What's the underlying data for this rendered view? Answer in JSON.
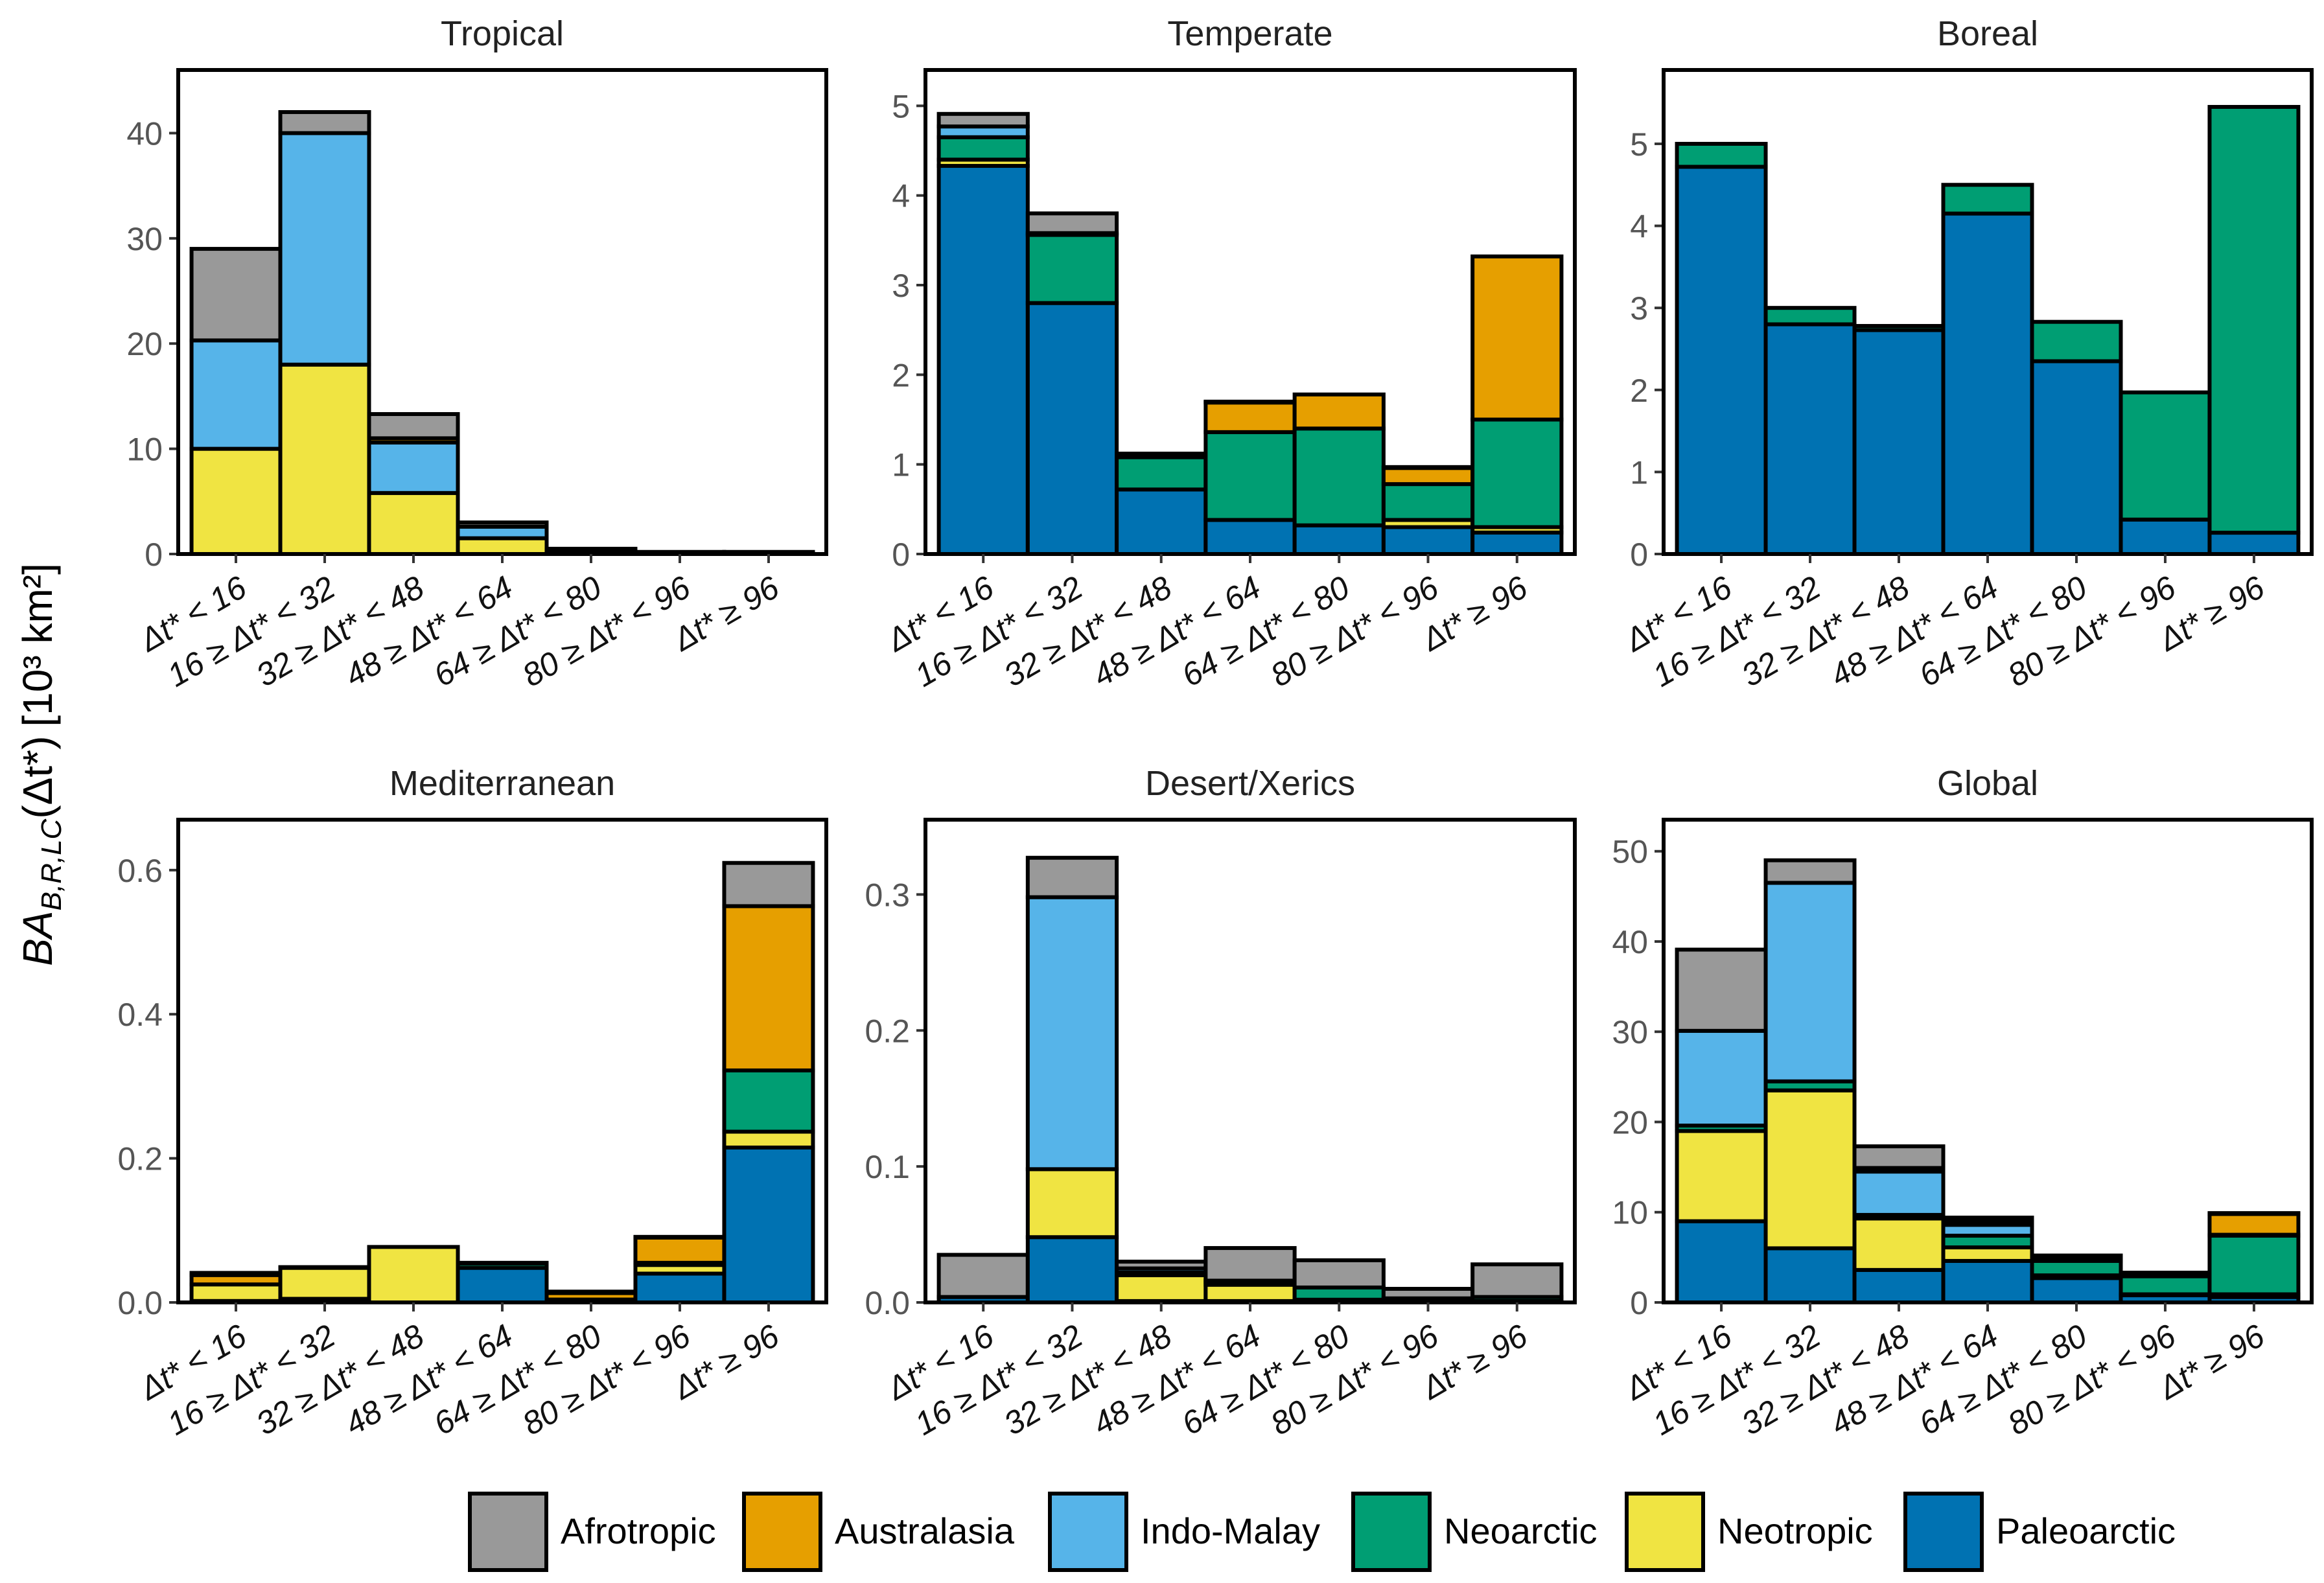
{
  "y_axis_label": {
    "symbol": "BA",
    "subscript": "B,R,LC",
    "argument": "(Δt*)",
    "units": "[10³ km²]"
  },
  "categories": [
    "Δt* < 16",
    "16 ≥ Δt* < 32",
    "32 ≥ Δt* < 48",
    "48 ≥ Δt* < 64",
    "64 ≥ Δt* < 80",
    "80 ≥ Δt* < 96",
    "Δt* ≥ 96"
  ],
  "legend": [
    {
      "name": "Afrotropic",
      "color": "#999999"
    },
    {
      "name": "Australasia",
      "color": "#E69F00"
    },
    {
      "name": "Indo-Malay",
      "color": "#56B4E9"
    },
    {
      "name": "Neoarctic",
      "color": "#009E73"
    },
    {
      "name": "Neotropic",
      "color": "#F0E442"
    },
    {
      "name": "Paleoarctic",
      "color": "#0072B2"
    }
  ],
  "chart_data": [
    {
      "type": "bar",
      "stacked": true,
      "title": "Tropical",
      "ylim": [
        0,
        46
      ],
      "yticks": [
        0,
        10,
        20,
        30,
        40
      ],
      "ytick_labels": [
        "0",
        "10",
        "20",
        "30",
        "40"
      ],
      "series": [
        {
          "name": "Paleoarctic",
          "values": [
            0,
            0,
            0,
            0,
            0,
            0,
            0
          ]
        },
        {
          "name": "Neotropic",
          "values": [
            10.0,
            18.0,
            5.8,
            1.5,
            0.3,
            0.1,
            0.1
          ]
        },
        {
          "name": "Neoarctic",
          "values": [
            0,
            0,
            0,
            0,
            0,
            0,
            0
          ]
        },
        {
          "name": "Indo-Malay",
          "values": [
            10.3,
            22.0,
            4.8,
            1.1,
            0.1,
            0.0,
            0.05
          ]
        },
        {
          "name": "Australasia",
          "values": [
            0,
            0,
            0.4,
            0,
            0,
            0,
            0
          ]
        },
        {
          "name": "Afrotropic",
          "values": [
            8.7,
            2.0,
            2.3,
            0.4,
            0.1,
            0.1,
            0.05
          ]
        }
      ]
    },
    {
      "type": "bar",
      "stacked": true,
      "title": "Temperate",
      "ylim": [
        0,
        5.4
      ],
      "yticks": [
        0,
        1,
        2,
        3,
        4,
        5
      ],
      "ytick_labels": [
        "0",
        "1",
        "2",
        "3",
        "4",
        "5"
      ],
      "series": [
        {
          "name": "Paleoarctic",
          "values": [
            4.33,
            2.8,
            0.72,
            0.38,
            0.32,
            0.3,
            0.24
          ]
        },
        {
          "name": "Neotropic",
          "values": [
            0.07,
            0,
            0,
            0,
            0,
            0.08,
            0.06
          ]
        },
        {
          "name": "Neoarctic",
          "values": [
            0.25,
            0.76,
            0.36,
            0.98,
            1.08,
            0.4,
            1.2
          ]
        },
        {
          "name": "Indo-Malay",
          "values": [
            0.12,
            0.02,
            0,
            0,
            0,
            0,
            0
          ]
        },
        {
          "name": "Australasia",
          "values": [
            0,
            0,
            0,
            0.33,
            0.38,
            0.18,
            1.82
          ]
        },
        {
          "name": "Afrotropic",
          "values": [
            0.14,
            0.22,
            0.04,
            0.01,
            0,
            0.01,
            0
          ]
        }
      ]
    },
    {
      "type": "bar",
      "stacked": true,
      "title": "Boreal",
      "ylim": [
        0,
        5.9
      ],
      "yticks": [
        0,
        1,
        2,
        3,
        4,
        5
      ],
      "ytick_labels": [
        "0",
        "1",
        "2",
        "3",
        "4",
        "5"
      ],
      "series": [
        {
          "name": "Paleoarctic",
          "values": [
            4.72,
            2.8,
            2.73,
            4.15,
            2.35,
            0.42,
            0.26
          ]
        },
        {
          "name": "Neotropic",
          "values": [
            0,
            0,
            0,
            0,
            0,
            0,
            0
          ]
        },
        {
          "name": "Neoarctic",
          "values": [
            0.28,
            0.2,
            0.05,
            0.35,
            0.48,
            1.55,
            5.19
          ]
        },
        {
          "name": "Indo-Malay",
          "values": [
            0,
            0,
            0,
            0,
            0,
            0,
            0
          ]
        },
        {
          "name": "Australasia",
          "values": [
            0,
            0,
            0,
            0,
            0,
            0,
            0
          ]
        },
        {
          "name": "Afrotropic",
          "values": [
            0,
            0,
            0,
            0,
            0,
            0,
            0
          ]
        }
      ]
    },
    {
      "type": "bar",
      "stacked": true,
      "title": "Mediterranean",
      "ylim": [
        0,
        0.67
      ],
      "yticks": [
        0,
        0.2,
        0.4,
        0.6
      ],
      "ytick_labels": [
        "0.0",
        "0.2",
        "0.4",
        "0.6"
      ],
      "series": [
        {
          "name": "Paleoarctic",
          "values": [
            0.002,
            0.005,
            0,
            0.048,
            0.002,
            0.04,
            0.215
          ]
        },
        {
          "name": "Neotropic",
          "values": [
            0.023,
            0.043,
            0.077,
            0,
            0,
            0.012,
            0.022
          ]
        },
        {
          "name": "Neoarctic",
          "values": [
            0,
            0,
            0,
            0.006,
            0.002,
            0.003,
            0.085
          ]
        },
        {
          "name": "Indo-Malay",
          "values": [
            0,
            0,
            0,
            0,
            0,
            0,
            0
          ]
        },
        {
          "name": "Australasia",
          "values": [
            0.013,
            0,
            0,
            0,
            0.009,
            0.035,
            0.228
          ]
        },
        {
          "name": "Afrotropic",
          "values": [
            0.003,
            0.001,
            0,
            0.001,
            0.002,
            0.001,
            0.06
          ]
        }
      ]
    },
    {
      "type": "bar",
      "stacked": true,
      "title": "Desert/Xerics",
      "ylim": [
        0,
        0.355
      ],
      "yticks": [
        0,
        0.1,
        0.2,
        0.3
      ],
      "ytick_labels": [
        "0.0",
        "0.1",
        "0.2",
        "0.3"
      ],
      "series": [
        {
          "name": "Paleoarctic",
          "values": [
            0.004,
            0.048,
            0.001,
            0.001,
            0.001,
            0.001,
            0.001
          ]
        },
        {
          "name": "Neotropic",
          "values": [
            0,
            0.05,
            0.019,
            0.012,
            0.001,
            0,
            0
          ]
        },
        {
          "name": "Neoarctic",
          "values": [
            0,
            0,
            0.002,
            0.002,
            0.009,
            0.002,
            0.003
          ]
        },
        {
          "name": "Indo-Malay",
          "values": [
            0,
            0.2,
            0.003,
            0.001,
            0,
            0,
            0
          ]
        },
        {
          "name": "Australasia",
          "values": [
            0,
            0,
            0,
            0,
            0,
            0,
            0
          ]
        },
        {
          "name": "Afrotropic",
          "values": [
            0.031,
            0.029,
            0.005,
            0.024,
            0.02,
            0.007,
            0.024
          ]
        }
      ]
    },
    {
      "type": "bar",
      "stacked": true,
      "title": "Global",
      "ylim": [
        0,
        53.5
      ],
      "yticks": [
        0,
        10,
        20,
        30,
        40,
        50
      ],
      "ytick_labels": [
        "0",
        "10",
        "20",
        "30",
        "40",
        "50"
      ],
      "series": [
        {
          "name": "Paleoarctic",
          "values": [
            9.0,
            6.0,
            3.6,
            4.6,
            2.7,
            0.8,
            0.6
          ]
        },
        {
          "name": "Neotropic",
          "values": [
            10.0,
            17.5,
            5.7,
            1.5,
            0.3,
            0.1,
            0.3
          ]
        },
        {
          "name": "Neoarctic",
          "values": [
            0.6,
            1.0,
            0.4,
            1.3,
            1.6,
            2.0,
            6.5
          ]
        },
        {
          "name": "Indo-Malay",
          "values": [
            10.5,
            22.0,
            4.8,
            1.2,
            0.1,
            0.1,
            0.1
          ]
        },
        {
          "name": "Australasia",
          "values": [
            0,
            0,
            0.4,
            0.4,
            0.4,
            0.2,
            2.3
          ]
        },
        {
          "name": "Afrotropic",
          "values": [
            9.0,
            2.5,
            2.4,
            0.4,
            0.1,
            0.1,
            0.1
          ]
        }
      ]
    }
  ]
}
